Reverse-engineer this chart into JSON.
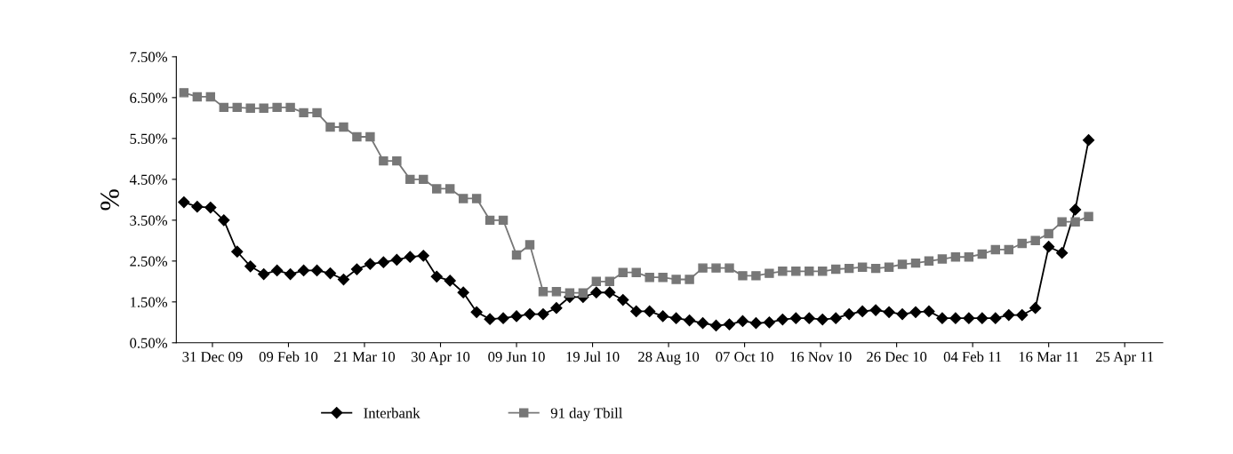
{
  "chart_data": {
    "type": "line",
    "ylabel": "%",
    "x": [
      "2009-12-16",
      "2009-12-23",
      "2009-12-30",
      "2010-01-06",
      "2010-01-13",
      "2010-01-20",
      "2010-01-27",
      "2010-02-03",
      "2010-02-10",
      "2010-02-17",
      "2010-02-24",
      "2010-03-03",
      "2010-03-10",
      "2010-03-17",
      "2010-03-24",
      "2010-03-31",
      "2010-04-07",
      "2010-04-14",
      "2010-04-21",
      "2010-04-28",
      "2010-05-05",
      "2010-05-12",
      "2010-05-19",
      "2010-05-26",
      "2010-06-02",
      "2010-06-09",
      "2010-06-16",
      "2010-06-23",
      "2010-06-30",
      "2010-07-07",
      "2010-07-14",
      "2010-07-21",
      "2010-07-28",
      "2010-08-04",
      "2010-08-11",
      "2010-08-18",
      "2010-08-25",
      "2010-09-01",
      "2010-09-08",
      "2010-09-15",
      "2010-09-22",
      "2010-09-29",
      "2010-10-06",
      "2010-10-13",
      "2010-10-20",
      "2010-10-27",
      "2010-11-03",
      "2010-11-10",
      "2010-11-17",
      "2010-11-24",
      "2010-12-01",
      "2010-12-08",
      "2010-12-15",
      "2010-12-22",
      "2010-12-29",
      "2011-01-05",
      "2011-01-12",
      "2011-01-19",
      "2011-01-26",
      "2011-02-02",
      "2011-02-09",
      "2011-02-16",
      "2011-02-23",
      "2011-03-02",
      "2011-03-09",
      "2011-03-16",
      "2011-03-23",
      "2011-03-30",
      "2011-04-06"
    ],
    "series": [
      {
        "name": "Interbank",
        "color": "#000000",
        "marker": "diamond",
        "values": [
          3.94,
          3.83,
          3.81,
          3.5,
          2.73,
          2.37,
          2.18,
          2.27,
          2.18,
          2.27,
          2.27,
          2.2,
          2.05,
          2.3,
          2.43,
          2.47,
          2.53,
          2.6,
          2.63,
          2.12,
          2.02,
          1.73,
          1.25,
          1.08,
          1.1,
          1.15,
          1.2,
          1.2,
          1.35,
          1.62,
          1.62,
          1.73,
          1.73,
          1.55,
          1.27,
          1.27,
          1.15,
          1.1,
          1.05,
          0.98,
          0.92,
          0.95,
          1.03,
          0.98,
          1.0,
          1.07,
          1.1,
          1.1,
          1.07,
          1.1,
          1.2,
          1.27,
          1.3,
          1.25,
          1.2,
          1.25,
          1.27,
          1.1,
          1.1,
          1.1,
          1.1,
          1.1,
          1.18,
          1.18,
          1.35,
          2.85,
          2.7,
          3.76,
          5.46
        ]
      },
      {
        "name": "91 day Tbill",
        "color": "#777777",
        "marker": "square",
        "values": [
          6.62,
          6.52,
          6.52,
          6.26,
          6.26,
          6.24,
          6.24,
          6.26,
          6.26,
          6.13,
          6.13,
          5.78,
          5.78,
          5.54,
          5.54,
          4.95,
          4.95,
          4.5,
          4.5,
          4.27,
          4.27,
          4.03,
          4.03,
          3.5,
          3.5,
          2.65,
          2.9,
          1.75,
          1.75,
          1.72,
          1.72,
          2.0,
          2.0,
          2.22,
          2.22,
          2.1,
          2.1,
          2.05,
          2.05,
          2.33,
          2.33,
          2.33,
          2.14,
          2.14,
          2.2,
          2.25,
          2.25,
          2.25,
          2.25,
          2.3,
          2.32,
          2.35,
          2.32,
          2.35,
          2.42,
          2.45,
          2.5,
          2.55,
          2.6,
          2.6,
          2.67,
          2.78,
          2.78,
          2.93,
          3.0,
          3.17,
          3.46,
          3.46,
          3.59
        ]
      }
    ],
    "xlim": [
      "2009-12-12",
      "2011-05-15"
    ],
    "xticks": [
      {
        "value": "2009-12-31",
        "label": "31 Dec 09"
      },
      {
        "value": "2010-02-09",
        "label": "09 Feb 10"
      },
      {
        "value": "2010-03-21",
        "label": "21 Mar 10"
      },
      {
        "value": "2010-04-30",
        "label": "30 Apr 10"
      },
      {
        "value": "2010-06-09",
        "label": "09 Jun 10"
      },
      {
        "value": "2010-07-19",
        "label": "19 Jul 10"
      },
      {
        "value": "2010-08-28",
        "label": "28 Aug 10"
      },
      {
        "value": "2010-10-07",
        "label": "07 Oct 10"
      },
      {
        "value": "2010-11-16",
        "label": "16 Nov 10"
      },
      {
        "value": "2010-12-26",
        "label": "26 Dec 10"
      },
      {
        "value": "2011-02-04",
        "label": "04 Feb 11"
      },
      {
        "value": "2011-03-16",
        "label": "16 Mar 11"
      },
      {
        "value": "2011-04-25",
        "label": "25 Apr 11"
      }
    ],
    "ylim": [
      0.5,
      7.5
    ],
    "yticks": [
      {
        "value": 0.5,
        "label": "0.50%"
      },
      {
        "value": 1.5,
        "label": "1.50%"
      },
      {
        "value": 2.5,
        "label": "2.50%"
      },
      {
        "value": 3.5,
        "label": "3.50%"
      },
      {
        "value": 4.5,
        "label": "4.50%"
      },
      {
        "value": 5.5,
        "label": "5.50%"
      },
      {
        "value": 6.5,
        "label": "6.50%"
      },
      {
        "value": 7.5,
        "label": "7.50%"
      }
    ],
    "grid": false,
    "legend": "bottom",
    "line_style": "solid"
  }
}
